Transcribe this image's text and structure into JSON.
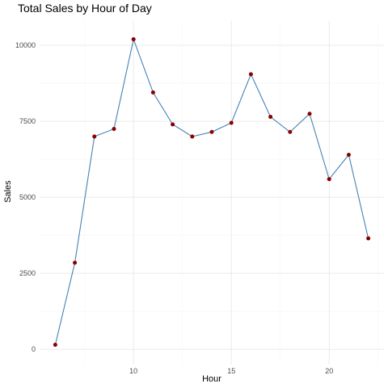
{
  "chart_data": {
    "type": "line",
    "title": "Total Sales by Hour of Day",
    "xlabel": "Hour",
    "ylabel": "Sales",
    "x": [
      6,
      7,
      8,
      9,
      10,
      11,
      12,
      13,
      14,
      15,
      16,
      17,
      18,
      19,
      20,
      21,
      22
    ],
    "series": [
      {
        "values": [
          150,
          2850,
          7000,
          7250,
          10200,
          8450,
          7400,
          7000,
          7150,
          7450,
          9050,
          7650,
          7150,
          7750,
          5600,
          6400,
          3650
        ]
      }
    ],
    "xlim": [
      5.2,
      22.8
    ],
    "ylim": [
      -500,
      10800
    ],
    "x_ticks": [
      "10",
      "15",
      "20"
    ],
    "y_ticks": [
      "0",
      "2500",
      "5000",
      "7500",
      "10000"
    ],
    "grid": true,
    "legend": "none",
    "colors": {
      "line": "#4682b4",
      "point": "#8b0000",
      "grid_major": "#ebebeb",
      "grid_minor": "#f5f5f5"
    }
  }
}
